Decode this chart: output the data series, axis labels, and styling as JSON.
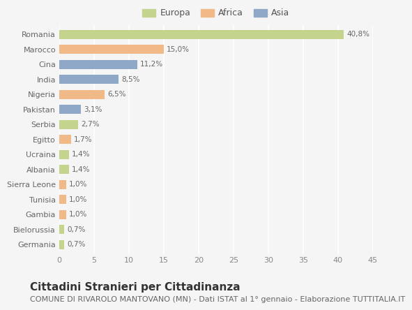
{
  "countries": [
    "Romania",
    "Marocco",
    "Cina",
    "India",
    "Nigeria",
    "Pakistan",
    "Serbia",
    "Egitto",
    "Ucraina",
    "Albania",
    "Sierra Leone",
    "Tunisia",
    "Gambia",
    "Bielorussia",
    "Germania"
  ],
  "values": [
    40.8,
    15.0,
    11.2,
    8.5,
    6.5,
    3.1,
    2.7,
    1.7,
    1.4,
    1.4,
    1.0,
    1.0,
    1.0,
    0.7,
    0.7
  ],
  "labels": [
    "40,8%",
    "15,0%",
    "11,2%",
    "8,5%",
    "6,5%",
    "3,1%",
    "2,7%",
    "1,7%",
    "1,4%",
    "1,4%",
    "1,0%",
    "1,0%",
    "1,0%",
    "0,7%",
    "0,7%"
  ],
  "continents": [
    "Europa",
    "Africa",
    "Asia",
    "Asia",
    "Africa",
    "Asia",
    "Europa",
    "Africa",
    "Europa",
    "Europa",
    "Africa",
    "Africa",
    "Africa",
    "Europa",
    "Europa"
  ],
  "colors": {
    "Europa": "#c5d48c",
    "Africa": "#f0b987",
    "Asia": "#8fa8c8"
  },
  "legend_labels": [
    "Europa",
    "Africa",
    "Asia"
  ],
  "title": "Cittadini Stranieri per Cittadinanza",
  "subtitle": "COMUNE DI RIVAROLO MANTOVANO (MN) - Dati ISTAT al 1° gennaio - Elaborazione TUTTITALIA.IT",
  "xlim": [
    0,
    45
  ],
  "xticks": [
    0,
    5,
    10,
    15,
    20,
    25,
    30,
    35,
    40,
    45
  ],
  "background_color": "#f5f5f5",
  "grid_color": "#ffffff",
  "bar_height": 0.6,
  "title_fontsize": 11,
  "subtitle_fontsize": 8,
  "label_fontsize": 7.5,
  "tick_fontsize": 8,
  "legend_fontsize": 9
}
